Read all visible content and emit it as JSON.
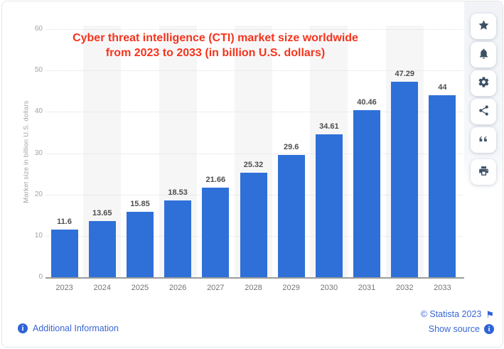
{
  "title": {
    "line1": "Cyber threat intelligence (CTI) market size worldwide",
    "line2": "from 2023 to 2033 (in billion U.S. dollars)"
  },
  "chart_data": {
    "type": "bar",
    "title": "Cyber threat intelligence (CTI) market size worldwide from 2023 to 2033 (in billion U.S. dollars)",
    "categories": [
      "2023",
      "2024",
      "2025",
      "2026",
      "2027",
      "2028",
      "2029",
      "2030",
      "2031",
      "2032",
      "2033"
    ],
    "values": [
      11.6,
      13.65,
      15.85,
      18.53,
      21.66,
      25.32,
      29.6,
      34.61,
      40.46,
      47.29,
      44
    ],
    "xlabel": "",
    "ylabel": "Market size in billion U.S. dollars",
    "ylim": [
      0,
      60
    ],
    "yticks": [
      0,
      10,
      20,
      30,
      40,
      50,
      60
    ],
    "grid": true,
    "legend": false,
    "bar_color": "#2e70d8",
    "band_color": "#f6f6f7",
    "title_color": "#f5341c"
  },
  "sidebar": {
    "icons": [
      "star-icon",
      "bell-icon",
      "gear-icon",
      "share-icon",
      "quote-icon",
      "print-icon"
    ]
  },
  "footer": {
    "additional_information": "Additional Information",
    "copyright": "© Statista 2023",
    "show_source": "Show source"
  }
}
